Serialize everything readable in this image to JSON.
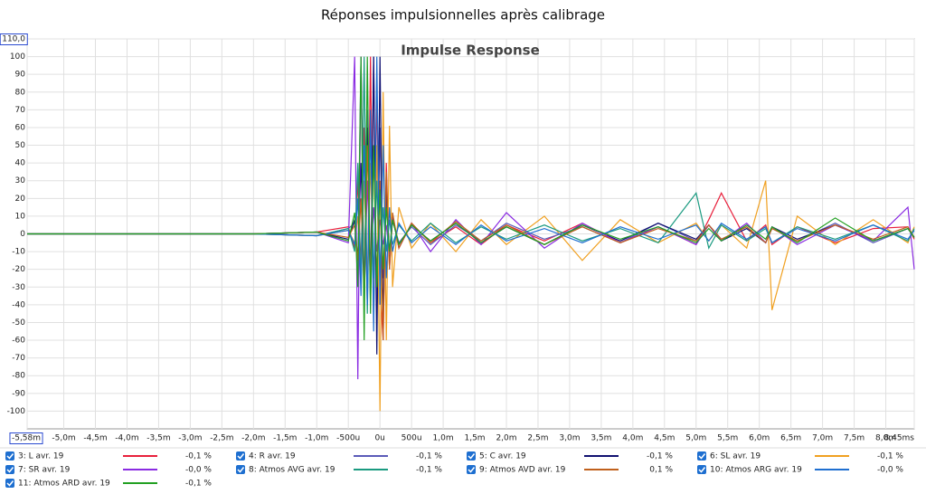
{
  "window_title": "Réponses impulsionnelles après calibrage",
  "chart_data": {
    "type": "line",
    "title": "Impulse Response",
    "x": [
      -5.58,
      -4.0,
      -2.0,
      -1.0,
      -0.5,
      -0.4,
      -0.35,
      -0.3,
      -0.25,
      -0.2,
      -0.15,
      -0.1,
      -0.05,
      0,
      0.05,
      0.1,
      0.15,
      0.2,
      0.3,
      0.5,
      0.8,
      1.2,
      1.6,
      2.0,
      2.6,
      3.2,
      3.8,
      4.4,
      5.0,
      5.2,
      5.4,
      5.8,
      6.1,
      6.2,
      6.6,
      7.2,
      7.8,
      8.35,
      8.45
    ],
    "xlim": [
      -5.58,
      8.45
    ],
    "xticks": [
      {
        "value": -5.58,
        "label": "-5,58m"
      },
      {
        "value": -5.0,
        "label": "-5,0m"
      },
      {
        "value": -4.5,
        "label": "-4,5m"
      },
      {
        "value": -4.0,
        "label": "-4,0m"
      },
      {
        "value": -3.5,
        "label": "-3,5m"
      },
      {
        "value": -3.0,
        "label": "-3,0m"
      },
      {
        "value": -2.5,
        "label": "-2,5m"
      },
      {
        "value": -2.0,
        "label": "-2,0m"
      },
      {
        "value": -1.5,
        "label": "-1,5m"
      },
      {
        "value": -1.0,
        "label": "-1,0m"
      },
      {
        "value": -0.5,
        "label": "-500u"
      },
      {
        "value": 0,
        "label": "0u"
      },
      {
        "value": 0.5,
        "label": "500u"
      },
      {
        "value": 1.0,
        "label": "1,0m"
      },
      {
        "value": 1.5,
        "label": "1,5m"
      },
      {
        "value": 2.0,
        "label": "2,0m"
      },
      {
        "value": 2.5,
        "label": "2,5m"
      },
      {
        "value": 3.0,
        "label": "3,0m"
      },
      {
        "value": 3.5,
        "label": "3,5m"
      },
      {
        "value": 4.0,
        "label": "4,0m"
      },
      {
        "value": 4.5,
        "label": "4,5m"
      },
      {
        "value": 5.0,
        "label": "5,0m"
      },
      {
        "value": 5.5,
        "label": "5,5m"
      },
      {
        "value": 6.0,
        "label": "6,0m"
      },
      {
        "value": 6.5,
        "label": "6,5m"
      },
      {
        "value": 7.0,
        "label": "7,0m"
      },
      {
        "value": 7.5,
        "label": "7,5m"
      },
      {
        "value": 8.0,
        "label": "8,0m"
      },
      {
        "value": 8.45,
        "label": "8,45ms"
      }
    ],
    "ylim": [
      -110,
      110
    ],
    "yticks": [
      {
        "value": 110,
        "label": "110,0"
      },
      100,
      90,
      80,
      70,
      60,
      50,
      40,
      30,
      20,
      10,
      0,
      -10,
      -20,
      -30,
      -40,
      -50,
      -60,
      -70,
      -80,
      -90,
      -100
    ],
    "grid": true,
    "series": [
      {
        "name": "3: L avr. 19",
        "color": "#e8203c",
        "readout": "-0,1 %",
        "values": [
          0,
          0,
          0,
          1,
          4,
          -8,
          30,
          -20,
          60,
          -40,
          100,
          -50,
          80,
          -30,
          -60,
          40,
          -20,
          10,
          -8,
          6,
          -5,
          4,
          -6,
          5,
          -4,
          6,
          -5,
          4,
          -6,
          8,
          23,
          -4,
          5,
          -6,
          4,
          -5,
          3,
          4,
          -3
        ]
      },
      {
        "name": "4: R avr. 19",
        "color": "#5a5ab8",
        "readout": "-0,1 %",
        "values": [
          0,
          0,
          0,
          -1,
          3,
          6,
          -20,
          100,
          -40,
          70,
          -30,
          100,
          -45,
          60,
          -25,
          20,
          -10,
          8,
          -5,
          4,
          -6,
          5,
          -4,
          6,
          -3,
          4,
          -5,
          6,
          -4,
          5,
          -3,
          4,
          -5,
          3,
          -4,
          6,
          -5,
          3,
          -2
        ]
      },
      {
        "name": "5: C avr. 19",
        "color": "#101070",
        "readout": "-0,1 %",
        "values": [
          0,
          0,
          0,
          1,
          -3,
          8,
          -15,
          40,
          -30,
          60,
          -40,
          100,
          -68,
          100,
          -50,
          30,
          -15,
          8,
          -6,
          5,
          -4,
          6,
          -5,
          4,
          -6,
          5,
          -4,
          6,
          -3,
          5,
          -4,
          3,
          -5,
          4,
          -3,
          5,
          -4,
          3,
          -2
        ]
      },
      {
        "name": "6: SL avr. 19",
        "color": "#f0a020",
        "readout": "-0,1 %",
        "values": [
          0,
          0,
          0,
          -1,
          2,
          -5,
          10,
          -20,
          30,
          -25,
          40,
          -30,
          50,
          -100,
          80,
          -60,
          61,
          -30,
          15,
          -8,
          6,
          -10,
          8,
          -6,
          10,
          -15,
          8,
          -5,
          6,
          -4,
          5,
          -8,
          30,
          -43,
          10,
          -6,
          8,
          -5,
          4
        ]
      },
      {
        "name": "7: SR avr. 19",
        "color": "#8a2be2",
        "readout": "-0,0 %",
        "values": [
          0,
          0,
          0,
          1,
          -5,
          100,
          -82,
          100,
          -40,
          30,
          -20,
          15,
          -10,
          8,
          -6,
          5,
          -12,
          10,
          -8,
          6,
          -10,
          8,
          -6,
          12,
          -8,
          6,
          -5,
          4,
          -6,
          5,
          -4,
          6,
          -5,
          4,
          -6,
          5,
          -4,
          15,
          -20
        ]
      },
      {
        "name": "8: Atmos AVG avr. 19",
        "color": "#1a9a80",
        "readout": "-0,1 %",
        "values": [
          0,
          0,
          0,
          -1,
          3,
          -10,
          40,
          -30,
          100,
          -45,
          60,
          -25,
          30,
          -20,
          15,
          -10,
          8,
          -6,
          5,
          -4,
          6,
          -5,
          4,
          -3,
          5,
          -4,
          3,
          -5,
          23,
          -8,
          5,
          -4,
          3,
          -5,
          4,
          -3,
          5,
          -4,
          3
        ]
      },
      {
        "name": "9: Atmos AVD avr. 19",
        "color": "#c0601c",
        "readout": "0,1 %",
        "values": [
          0,
          0,
          0,
          1,
          -2,
          5,
          -15,
          20,
          -35,
          50,
          -30,
          45,
          -25,
          30,
          -60,
          35,
          -20,
          12,
          -8,
          6,
          -5,
          7,
          -4,
          5,
          -6,
          4,
          -5,
          3,
          -4,
          5,
          -3,
          4,
          -5,
          3,
          -4,
          5,
          -3,
          4,
          -2
        ]
      },
      {
        "name": "10: Atmos ARG avr. 19",
        "color": "#1f6fd0",
        "readout": "-0,0 %",
        "values": [
          0,
          0,
          0,
          -1,
          2,
          -6,
          20,
          -35,
          50,
          -40,
          70,
          -55,
          100,
          -40,
          50,
          -25,
          15,
          -10,
          6,
          -5,
          4,
          -6,
          5,
          -4,
          3,
          -5,
          4,
          -3,
          5,
          -4,
          6,
          -3,
          4,
          -5,
          3,
          -4,
          5,
          -3,
          2
        ]
      },
      {
        "name": "11: Atmos ARD avr. 19",
        "color": "#22a022",
        "readout": "-0,1 %",
        "values": [
          0,
          0,
          0,
          1,
          -4,
          12,
          -30,
          100,
          -60,
          100,
          -45,
          50,
          -30,
          25,
          -20,
          15,
          -10,
          8,
          -6,
          5,
          -4,
          6,
          -5,
          4,
          -6,
          5,
          -3,
          4,
          -5,
          3,
          -4,
          5,
          -3,
          4,
          -5,
          9,
          -4,
          3,
          -2
        ]
      }
    ]
  }
}
